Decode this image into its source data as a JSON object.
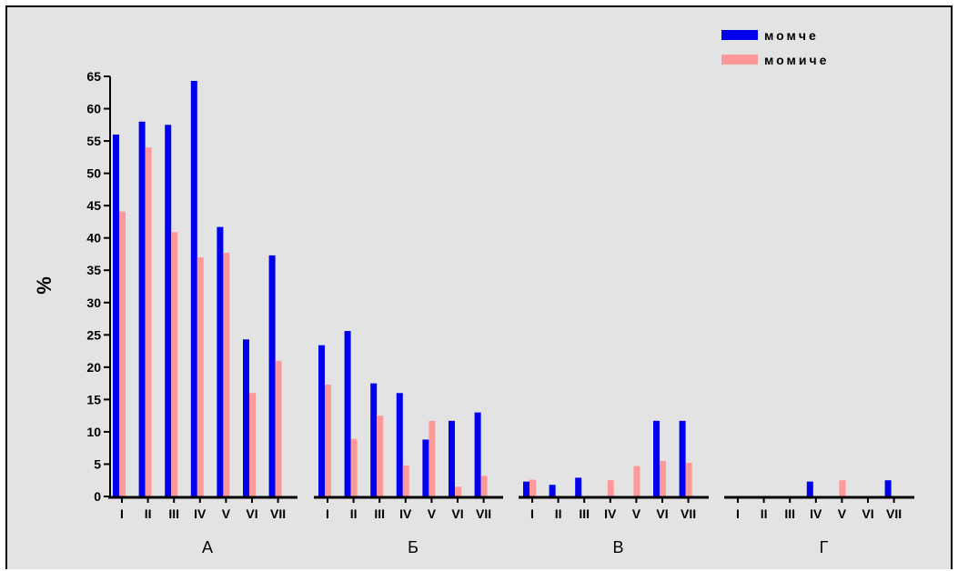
{
  "chart_data": {
    "type": "bar",
    "ylabel": "%",
    "xlabel": "",
    "ylim": [
      0,
      65
    ],
    "yticks": [
      0,
      5,
      10,
      15,
      20,
      25,
      30,
      35,
      40,
      45,
      50,
      55,
      60,
      65
    ],
    "groups": [
      "А",
      "Б",
      "В",
      "Г"
    ],
    "categories": [
      "I",
      "II",
      "III",
      "IV",
      "V",
      "VI",
      "VII"
    ],
    "legend_position": "top-right",
    "grid": false,
    "series": [
      {
        "name": "момче",
        "color": "#0000ee",
        "values": [
          [
            56,
            58,
            57.5,
            64.3,
            41.7,
            24.3,
            37.3
          ],
          [
            23.4,
            25.6,
            17.5,
            16,
            8.8,
            11.7,
            13
          ],
          [
            2.3,
            1.8,
            2.9,
            0,
            0,
            11.7,
            11.7
          ],
          [
            0,
            0,
            0,
            2.3,
            0,
            0,
            2.5
          ]
        ]
      },
      {
        "name": "момиче",
        "color": "#ff9999",
        "values": [
          [
            44.1,
            54,
            40.9,
            37,
            37.7,
            16,
            21
          ],
          [
            17.3,
            8.9,
            12.5,
            4.8,
            11.7,
            1.5,
            3.2
          ],
          [
            2.6,
            0,
            0,
            2.5,
            4.7,
            5.5,
            5.2
          ],
          [
            0,
            0,
            0,
            0,
            2.5,
            0,
            0
          ]
        ]
      }
    ]
  }
}
